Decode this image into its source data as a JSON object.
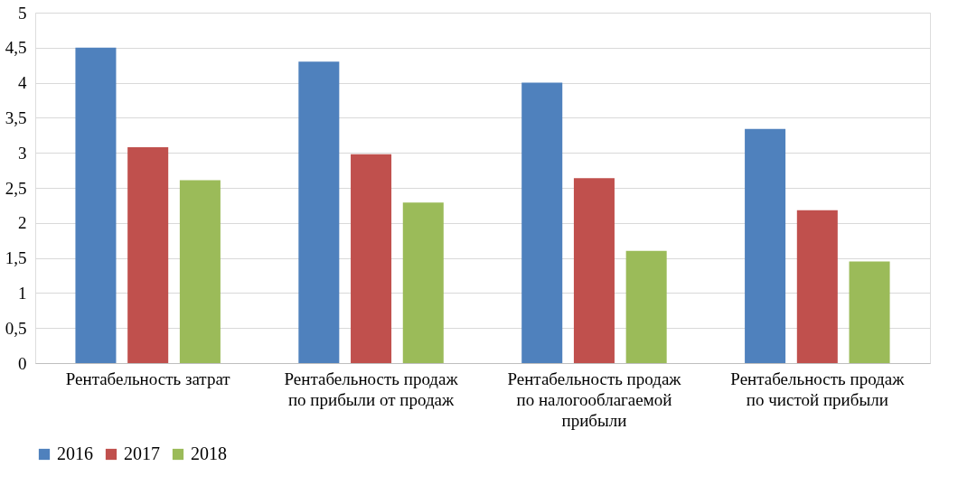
{
  "chart_data": {
    "type": "bar",
    "categories": [
      "Рентабельность затрат",
      "Рентабельность продаж по прибыли от продаж",
      "Рентабельность продаж по налогооблагаемой прибыли",
      "Рентабельность продаж по чистой прибыли"
    ],
    "series": [
      {
        "name": "2016",
        "color": "#4f81bd",
        "values": [
          4.5,
          4.3,
          4.0,
          3.34
        ]
      },
      {
        "name": "2017",
        "color": "#c0504d",
        "values": [
          3.08,
          2.98,
          2.64,
          2.18
        ]
      },
      {
        "name": "2018",
        "color": "#9bbb59",
        "values": [
          2.61,
          2.29,
          1.6,
          1.45
        ]
      }
    ],
    "ylim": [
      0,
      5
    ],
    "yticks": [
      0,
      {
        "value": 0.5,
        "label": "0,5"
      },
      1,
      {
        "value": 1.5,
        "label": "1,5"
      },
      2,
      {
        "value": 2.5,
        "label": "2,5"
      },
      3,
      {
        "value": 3.5,
        "label": "3,5"
      },
      4,
      {
        "value": 4.5,
        "label": "4,5"
      },
      5
    ],
    "grid": "y",
    "legend": "bottom"
  }
}
